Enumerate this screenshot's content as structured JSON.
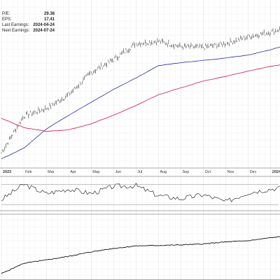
{
  "info": {
    "pe_label": "P/E:",
    "pe_value": "29.38",
    "eps_label": "EPS:",
    "eps_value": "17.41",
    "last_label": "Last Earnings:",
    "last_value": "2024-04-24",
    "next_label": "Next Earnings:",
    "next_value": "2024-07-24"
  },
  "colors": {
    "price": "#111111",
    "ma_short": "#2b2bab",
    "ma_long": "#c8184a",
    "rsi_fill": "#2e7d32",
    "grid": "#e2e2e2",
    "axis": "#555555"
  },
  "chart_data": [
    {
      "type": "line",
      "panel": "price",
      "title": "",
      "x_ticks": [
        "2023",
        "Feb",
        "Mar",
        "Apr",
        "May",
        "Jun",
        "Jul",
        "Aug",
        "Sep",
        "Oct",
        "Nov",
        "Dec",
        "2024"
      ],
      "x": [
        "2023-01",
        "2023-02",
        "2023-03",
        "2023-04",
        "2023-05",
        "2023-06",
        "2023-07",
        "2023-08",
        "2023-09",
        "2023-10",
        "2023-11",
        "2023-12",
        "2024-01",
        "2024-02"
      ],
      "series": [
        {
          "values": [
            1.0,
            1.48,
            1.58,
            1.76,
            2.05,
            2.22,
            2.43,
            2.46,
            2.39,
            2.38,
            2.43,
            2.52,
            2.58,
            2.67
          ]
        },
        {
          "values": [
            0.92,
            1.06,
            1.31,
            1.49,
            1.66,
            1.83,
            1.98,
            2.14,
            2.18,
            2.21,
            2.24,
            2.28,
            2.35,
            2.43
          ]
        },
        {
          "values": [
            1.45,
            1.33,
            1.28,
            1.3,
            1.38,
            1.49,
            1.62,
            1.76,
            1.85,
            1.94,
            2.0,
            2.07,
            2.13,
            2.18
          ]
        }
      ],
      "grid": true,
      "ylim": [
        0.8,
        3.0
      ]
    },
    {
      "type": "area",
      "panel": "rsi",
      "x": [
        "2023-01",
        "2023-02",
        "2023-03",
        "2023-04",
        "2023-05",
        "2023-06",
        "2023-07",
        "2023-08",
        "2023-09",
        "2023-10",
        "2023-11",
        "2023-12",
        "2024-01",
        "2024-02"
      ],
      "values": [
        40,
        70,
        52,
        61,
        52,
        66,
        67,
        48,
        42,
        50,
        36,
        54,
        61,
        66
      ],
      "ylim": [
        20,
        80
      ],
      "reference_lines": [
        30,
        70
      ],
      "grid": true
    },
    {
      "type": "line",
      "panel": "relative",
      "x": [
        "2023-01",
        "2023-02",
        "2023-03",
        "2023-04",
        "2023-05",
        "2023-06",
        "2023-07",
        "2023-08",
        "2023-09",
        "2023-10",
        "2023-11",
        "2023-12",
        "2024-01",
        "2024-02"
      ],
      "values": [
        1.0,
        1.42,
        1.55,
        1.7,
        1.88,
        2.02,
        2.12,
        2.14,
        2.16,
        2.2,
        2.28,
        2.33,
        2.45,
        2.55
      ],
      "ylim": [
        0.8,
        3.4
      ],
      "grid": true
    }
  ]
}
